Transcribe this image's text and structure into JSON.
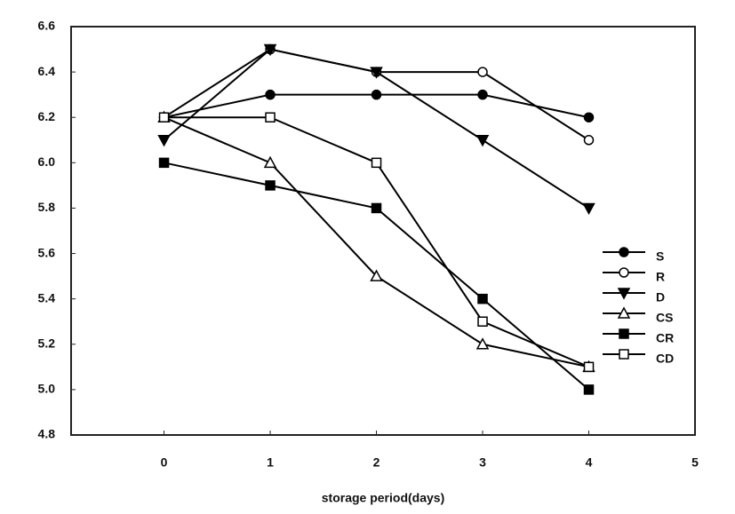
{
  "chart_data": {
    "type": "line",
    "x_label": "storage period(days)",
    "x": [
      0,
      1,
      2,
      3,
      4
    ],
    "xlim": [
      -0.875,
      5
    ],
    "xticks": [
      0,
      1,
      2,
      3,
      4,
      5
    ],
    "ylim": [
      4.8,
      6.6
    ],
    "yticks": [
      4.8,
      {
        "value": 5.0,
        "label": "5.0"
      },
      5.2,
      5.4,
      5.6,
      5.8,
      {
        "value": 6.0,
        "label": "6.0"
      },
      6.2,
      6.4,
      6.6
    ],
    "grid": false,
    "legend": "right",
    "series": [
      {
        "name": "S",
        "color": "#000000",
        "marker": "circle",
        "values": [
          6.2,
          6.3,
          6.3,
          6.3,
          6.2
        ]
      },
      {
        "name": "R",
        "color": "#000000",
        "marker": "open-circle",
        "values": [
          6.2,
          6.5,
          6.4,
          6.4,
          6.1
        ]
      },
      {
        "name": "D",
        "color": "#000000",
        "marker": "triangle-down",
        "values": [
          6.1,
          6.5,
          6.4,
          6.1,
          5.8
        ]
      },
      {
        "name": "CS",
        "color": "#000000",
        "marker": "open-triangle",
        "values": [
          6.2,
          6.0,
          5.5,
          5.2,
          5.1
        ]
      },
      {
        "name": "CR",
        "color": "#000000",
        "marker": "square",
        "values": [
          6.0,
          5.9,
          5.8,
          5.4,
          5.0
        ]
      },
      {
        "name": "CD",
        "color": "#000000",
        "marker": "open-square",
        "values": [
          6.2,
          6.2,
          6.0,
          5.3,
          5.1
        ]
      }
    ]
  }
}
